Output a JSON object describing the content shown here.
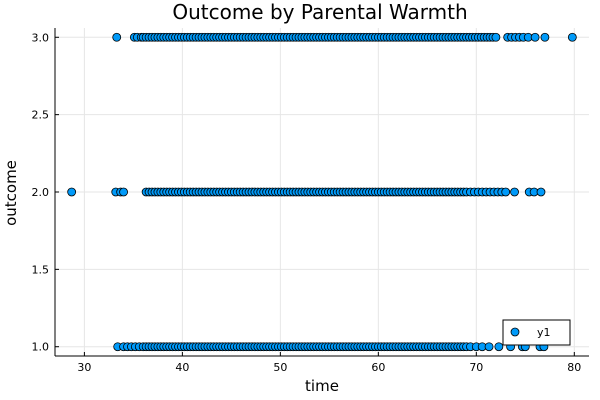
{
  "chart_data": {
    "type": "scatter",
    "title": "Outcome by Parental Warmth",
    "xlabel": "time",
    "ylabel": "outcome",
    "xlim": [
      27,
      81.5
    ],
    "ylim": [
      0.94,
      3.06
    ],
    "xticks": [
      30,
      40,
      50,
      60,
      70,
      80
    ],
    "yticks": [
      1.0,
      1.5,
      2.0,
      2.5,
      3.0
    ],
    "xtick_labels": [
      "30",
      "40",
      "50",
      "60",
      "70",
      "80"
    ],
    "ytick_labels": [
      "1.0",
      "1.5",
      "2.0",
      "2.5",
      "3.0"
    ],
    "grid": true,
    "legend_position": "bottom-right",
    "series": [
      {
        "name": "y1",
        "color": "#009af9",
        "edge_color": "#000000",
        "points_by_level": [
          {
            "y": 3.0,
            "x": [
              33.3,
              35.1,
              35.4,
              35.8,
              36.0,
              36.3,
              36.6,
              36.9,
              37.2,
              37.5,
              37.8,
              38.1,
              38.4,
              38.7,
              39.0,
              39.3,
              39.6,
              39.9,
              40.2,
              40.5,
              40.8,
              41.1,
              41.4,
              41.7,
              42.0,
              42.3,
              42.6,
              42.9,
              43.2,
              43.5,
              43.8,
              44.1,
              44.4,
              44.7,
              45.0,
              45.3,
              45.6,
              45.9,
              46.2,
              46.5,
              46.8,
              47.1,
              47.4,
              47.7,
              48.0,
              48.3,
              48.6,
              48.9,
              49.2,
              49.5,
              49.8,
              50.1,
              50.4,
              50.7,
              51.0,
              51.3,
              51.6,
              51.9,
              52.2,
              52.5,
              52.8,
              53.1,
              53.4,
              53.7,
              54.0,
              54.3,
              54.6,
              54.9,
              55.2,
              55.5,
              55.8,
              56.1,
              56.4,
              56.7,
              57.0,
              57.3,
              57.6,
              57.9,
              58.2,
              58.5,
              58.8,
              59.1,
              59.4,
              59.7,
              60.0,
              60.3,
              60.6,
              60.9,
              61.2,
              61.5,
              61.8,
              62.1,
              62.4,
              62.7,
              63.0,
              63.3,
              63.6,
              63.9,
              64.2,
              64.5,
              64.8,
              65.1,
              65.4,
              65.7,
              66.0,
              66.3,
              66.6,
              66.9,
              67.2,
              67.5,
              67.8,
              68.1,
              68.4,
              68.7,
              69.0,
              69.3,
              69.6,
              69.9,
              70.2,
              70.5,
              70.8,
              71.1,
              71.4,
              71.7,
              72.0,
              73.2,
              73.6,
              74.0,
              74.4,
              74.8,
              75.3,
              76.0,
              77.0,
              79.8
            ]
          },
          {
            "y": 2.0,
            "x": [
              28.7,
              33.2,
              33.7,
              34.0,
              36.3,
              36.6,
              36.9,
              37.2,
              37.5,
              37.8,
              38.1,
              38.4,
              38.7,
              39.0,
              39.3,
              39.6,
              39.9,
              40.2,
              40.5,
              40.8,
              41.1,
              41.4,
              41.7,
              42.0,
              42.3,
              42.6,
              42.9,
              43.2,
              43.5,
              43.8,
              44.1,
              44.4,
              44.7,
              45.0,
              45.3,
              45.6,
              45.9,
              46.2,
              46.5,
              46.8,
              47.1,
              47.4,
              47.7,
              48.0,
              48.3,
              48.6,
              48.9,
              49.2,
              49.5,
              49.8,
              50.1,
              50.4,
              50.7,
              51.0,
              51.3,
              51.6,
              51.9,
              52.2,
              52.5,
              52.8,
              53.1,
              53.4,
              53.7,
              54.0,
              54.3,
              54.6,
              54.9,
              55.2,
              55.5,
              55.8,
              56.1,
              56.4,
              56.7,
              57.0,
              57.3,
              57.6,
              57.9,
              58.2,
              58.5,
              58.8,
              59.1,
              59.4,
              59.7,
              60.0,
              60.3,
              60.6,
              60.9,
              61.2,
              61.5,
              61.8,
              62.1,
              62.4,
              62.7,
              63.0,
              63.3,
              63.6,
              63.9,
              64.2,
              64.5,
              64.8,
              65.1,
              65.4,
              65.7,
              66.0,
              66.3,
              66.6,
              66.9,
              67.2,
              67.5,
              67.8,
              68.1,
              68.4,
              68.7,
              69.0,
              69.4,
              69.8,
              70.2,
              70.6,
              71.0,
              71.4,
              71.8,
              72.2,
              72.6,
              73.0,
              73.9,
              75.4,
              75.9,
              76.6
            ]
          },
          {
            "y": 1.0,
            "x": [
              33.4,
              34.0,
              34.4,
              34.8,
              35.2,
              35.6,
              36.0,
              36.3,
              36.6,
              36.9,
              37.2,
              37.5,
              37.8,
              38.1,
              38.4,
              38.7,
              39.0,
              39.3,
              39.6,
              39.9,
              40.2,
              40.5,
              40.8,
              41.1,
              41.4,
              41.7,
              42.0,
              42.3,
              42.6,
              42.9,
              43.2,
              43.5,
              43.8,
              44.1,
              44.4,
              44.7,
              45.0,
              45.3,
              45.6,
              45.9,
              46.2,
              46.5,
              46.8,
              47.1,
              47.4,
              47.7,
              48.0,
              48.3,
              48.6,
              48.9,
              49.2,
              49.5,
              49.8,
              50.1,
              50.4,
              50.7,
              51.0,
              51.3,
              51.6,
              51.9,
              52.2,
              52.5,
              52.8,
              53.1,
              53.4,
              53.7,
              54.0,
              54.3,
              54.6,
              54.9,
              55.2,
              55.5,
              55.8,
              56.1,
              56.4,
              56.7,
              57.0,
              57.3,
              57.6,
              57.9,
              58.2,
              58.5,
              58.8,
              59.1,
              59.4,
              59.7,
              60.0,
              60.3,
              60.6,
              60.9,
              61.2,
              61.5,
              61.8,
              62.1,
              62.4,
              62.7,
              63.0,
              63.3,
              63.6,
              63.9,
              64.2,
              64.5,
              64.8,
              65.1,
              65.4,
              65.7,
              66.0,
              66.3,
              66.6,
              66.9,
              67.2,
              67.5,
              67.8,
              68.1,
              68.4,
              68.7,
              69.0,
              69.4,
              70.0,
              70.6,
              71.3,
              72.3,
              73.5,
              74.7,
              75.0,
              76.5,
              76.9
            ]
          }
        ]
      }
    ]
  }
}
